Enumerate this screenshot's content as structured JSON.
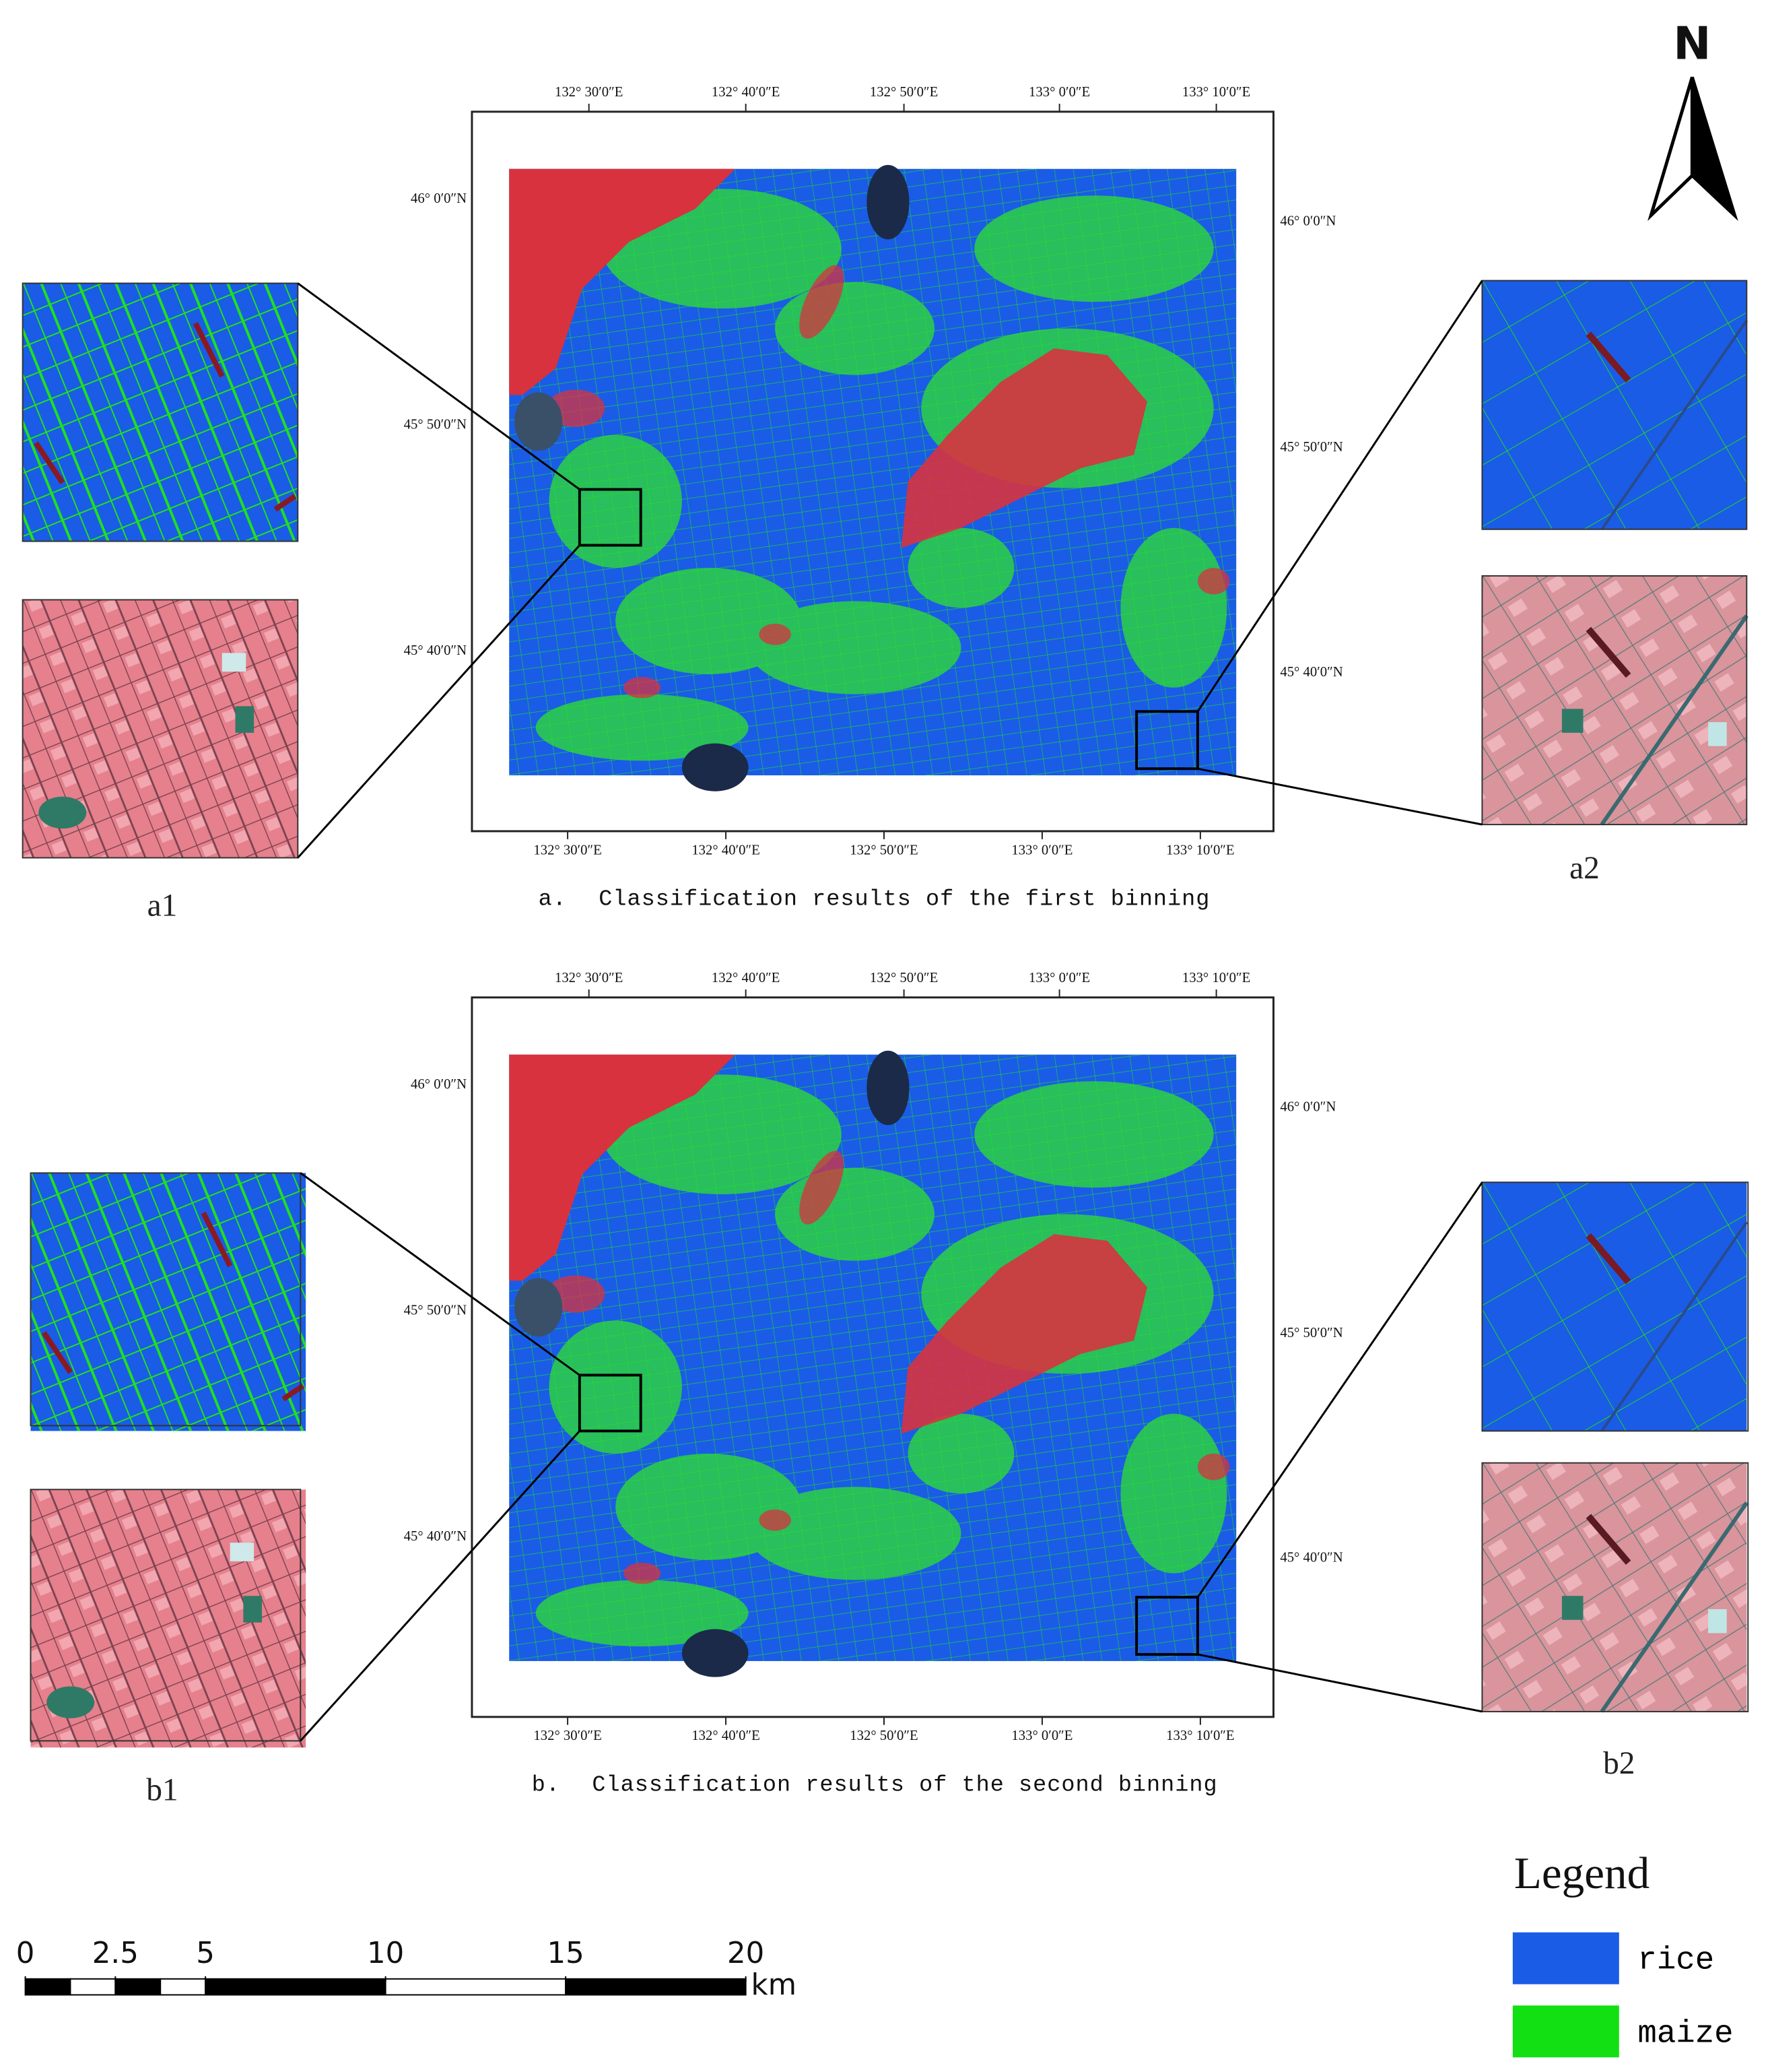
{
  "north": "N",
  "panels": [
    {
      "top_labels": [
        "132° 30′0″E",
        "132° 40′0″E",
        "132° 50′0″E",
        "133° 0′0″E",
        "133° 10′0″E"
      ],
      "bottom_labels": [
        "132° 30′0″E",
        "132° 40′0″E",
        "132° 50′0″E",
        "133° 0′0″E",
        "133° 10′0″E"
      ],
      "left_labels": [
        "46° 0′0″N",
        "45° 50′0″N",
        "45° 40′0″N"
      ],
      "right_labels": [
        "46° 0′0″N",
        "45° 50′0″N",
        "45° 40′0″N"
      ],
      "caption_letter": "a.",
      "caption": "Classification results of the first binning",
      "inset_left": "a1",
      "inset_right": "a2"
    },
    {
      "top_labels": [
        "132° 30′0″E",
        "132° 40′0″E",
        "132° 50′0″E",
        "133° 0′0″E",
        "133° 10′0″E"
      ],
      "bottom_labels": [
        "132° 30′0″E",
        "132° 40′0″E",
        "132° 50′0″E",
        "133° 0′0″E",
        "133° 10′0″E"
      ],
      "left_labels": [
        "46° 0′0″N",
        "45° 50′0″N",
        "45° 40′0″N"
      ],
      "right_labels": [
        "46° 0′0″N",
        "45° 50′0″N",
        "45° 40′0″N"
      ],
      "caption_letter": "b.",
      "caption": "Classification results of the second binning",
      "inset_left": "b1",
      "inset_right": "b2"
    }
  ],
  "legend": {
    "title": "Legend",
    "items": [
      {
        "label": "rice",
        "color": "#1a5ce6"
      },
      {
        "label": "maize",
        "color": "#12e012"
      }
    ]
  },
  "scale_bar": {
    "ticks": [
      0,
      2.5,
      5,
      10,
      15,
      20
    ],
    "unit": "km"
  }
}
